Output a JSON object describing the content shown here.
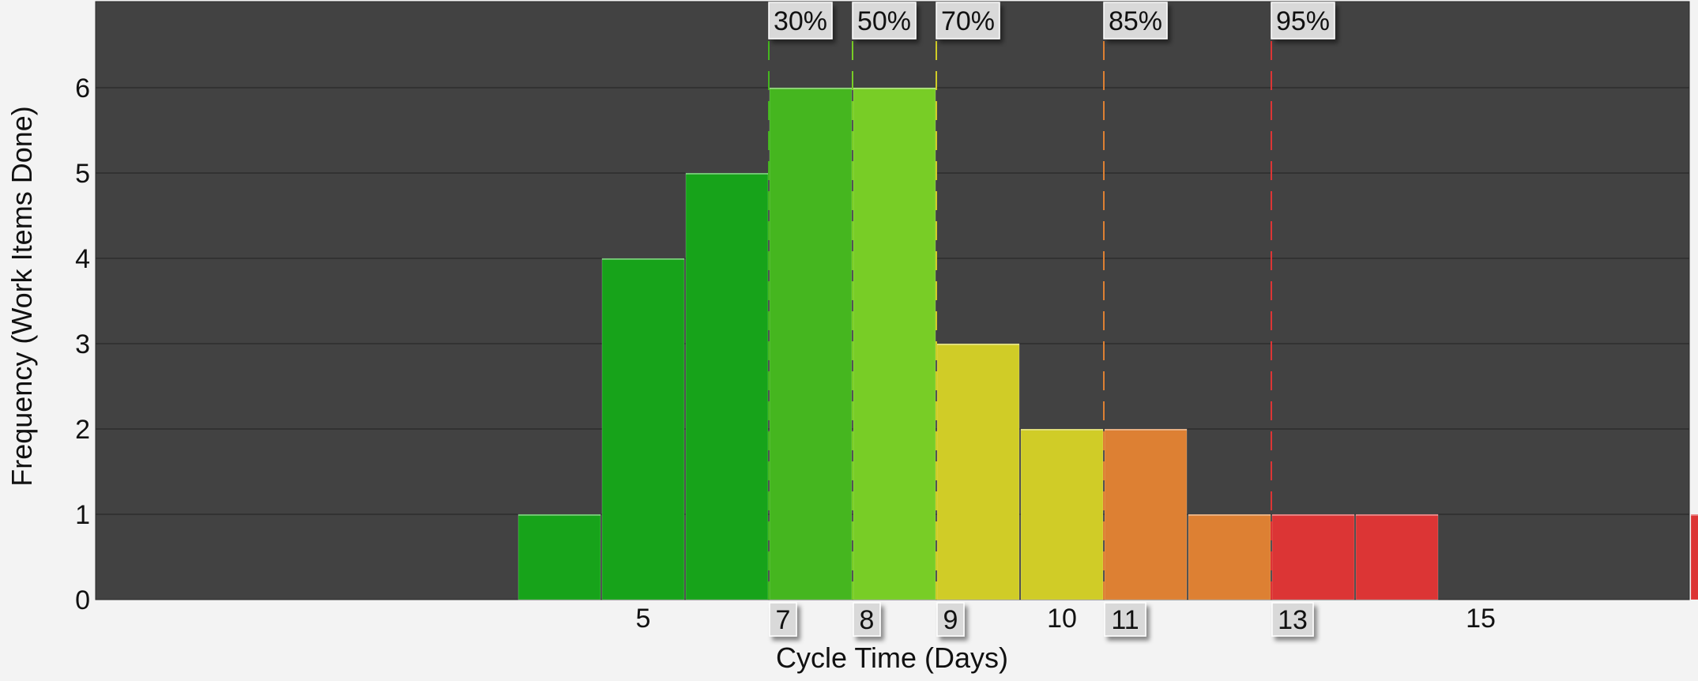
{
  "chart_data": {
    "type": "bar",
    "title": "",
    "xlabel": "Cycle Time (Days)",
    "ylabel": "Frequency (Work Items Done)",
    "xlim": [
      0.5,
      19.5
    ],
    "ylim": [
      0,
      7
    ],
    "x_ticks": [
      5,
      10,
      15
    ],
    "y_ticks": [
      0,
      1,
      2,
      3,
      4,
      5,
      6
    ],
    "grid": true,
    "bars": [
      {
        "x": 4,
        "value": 1,
        "color": "#17a31a"
      },
      {
        "x": 5,
        "value": 4,
        "color": "#17a31a"
      },
      {
        "x": 6,
        "value": 5,
        "color": "#17a31a"
      },
      {
        "x": 7,
        "value": 6,
        "color": "#45b61f"
      },
      {
        "x": 8,
        "value": 6,
        "color": "#78cd26"
      },
      {
        "x": 9,
        "value": 3,
        "color": "#d0cc27"
      },
      {
        "x": 10,
        "value": 2,
        "color": "#d0cc27"
      },
      {
        "x": 11,
        "value": 2,
        "color": "#dd8033"
      },
      {
        "x": 12,
        "value": 1,
        "color": "#dd8033"
      },
      {
        "x": 13,
        "value": 1,
        "color": "#dc3535"
      },
      {
        "x": 14,
        "value": 1,
        "color": "#dc3535"
      },
      {
        "x": 18,
        "value": 1,
        "color": "#dc3535"
      }
    ],
    "percentiles": [
      {
        "label": "30%",
        "value": 7,
        "marker": "7",
        "color": "#45b61f"
      },
      {
        "label": "50%",
        "value": 8,
        "marker": "8",
        "color": "#78cd26"
      },
      {
        "label": "70%",
        "value": 9,
        "marker": "9",
        "color": "#d0cc27"
      },
      {
        "label": "85%",
        "value": 11,
        "marker": "11",
        "color": "#dd8033"
      },
      {
        "label": "95%",
        "value": 13,
        "marker": "13",
        "color": "#dc3535"
      }
    ],
    "colors": {
      "plot_background": "#424242",
      "page_background": "#f3f3f3",
      "grid": "#2c2c2c",
      "tag_fill": "#d9d9d9"
    }
  }
}
